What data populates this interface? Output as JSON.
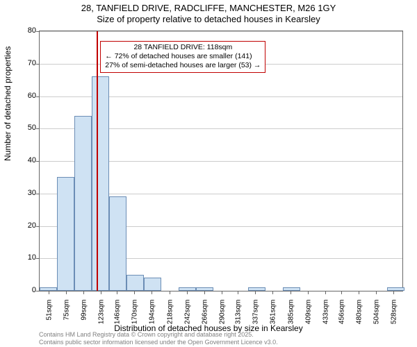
{
  "title": {
    "line1": "28, TANFIELD DRIVE, RADCLIFFE, MANCHESTER, M26 1GY",
    "line2": "Size of property relative to detached houses in Kearsley"
  },
  "chart": {
    "type": "histogram",
    "bar_fill_color": "#cfe2f3",
    "bar_border_color": "#6b8db5",
    "background_color": "#ffffff",
    "grid_color": "#cccccc",
    "axis_color": "#666666",
    "reference_line_color": "#c00000",
    "annotation_border_color": "#c00000",
    "ylim": [
      0,
      80
    ],
    "yticks": [
      0,
      10,
      20,
      30,
      40,
      50,
      60,
      70,
      80
    ],
    "xlim": [
      39,
      540
    ],
    "xticks_values": [
      51,
      75,
      99,
      123,
      146,
      170,
      194,
      218,
      242,
      266,
      290,
      313,
      337,
      361,
      385,
      409,
      433,
      456,
      480,
      504,
      528
    ],
    "xticks_labels": [
      "51sqm",
      "75sqm",
      "99sqm",
      "123sqm",
      "146sqm",
      "170sqm",
      "194sqm",
      "218sqm",
      "242sqm",
      "266sqm",
      "290sqm",
      "313sqm",
      "337sqm",
      "361sqm",
      "385sqm",
      "409sqm",
      "433sqm",
      "456sqm",
      "480sqm",
      "504sqm",
      "528sqm"
    ],
    "bin_width": 24,
    "bars": [
      {
        "x": 39,
        "h": 1
      },
      {
        "x": 63,
        "h": 35
      },
      {
        "x": 87,
        "h": 54
      },
      {
        "x": 111,
        "h": 66
      },
      {
        "x": 135,
        "h": 29
      },
      {
        "x": 159,
        "h": 5
      },
      {
        "x": 183,
        "h": 4
      },
      {
        "x": 207,
        "h": 0
      },
      {
        "x": 231,
        "h": 1
      },
      {
        "x": 255,
        "h": 1
      },
      {
        "x": 279,
        "h": 0
      },
      {
        "x": 303,
        "h": 0
      },
      {
        "x": 327,
        "h": 1
      },
      {
        "x": 351,
        "h": 0
      },
      {
        "x": 375,
        "h": 1
      },
      {
        "x": 399,
        "h": 0
      },
      {
        "x": 423,
        "h": 0
      },
      {
        "x": 447,
        "h": 0
      },
      {
        "x": 471,
        "h": 0
      },
      {
        "x": 495,
        "h": 0
      },
      {
        "x": 519,
        "h": 1
      }
    ],
    "reference_x": 118,
    "annotation": {
      "line1": "28 TANFIELD DRIVE: 118sqm",
      "line2": "← 72% of detached houses are smaller (141)",
      "line3": "27% of semi-detached houses are larger (53) →",
      "top_y_value": 77
    }
  },
  "axes": {
    "ylabel": "Number of detached properties",
    "xlabel": "Distribution of detached houses by size in Kearsley"
  },
  "footer": {
    "line1": "Contains HM Land Registry data © Crown copyright and database right 2025.",
    "line2": "Contains public sector information licensed under the Open Government Licence v3.0."
  }
}
